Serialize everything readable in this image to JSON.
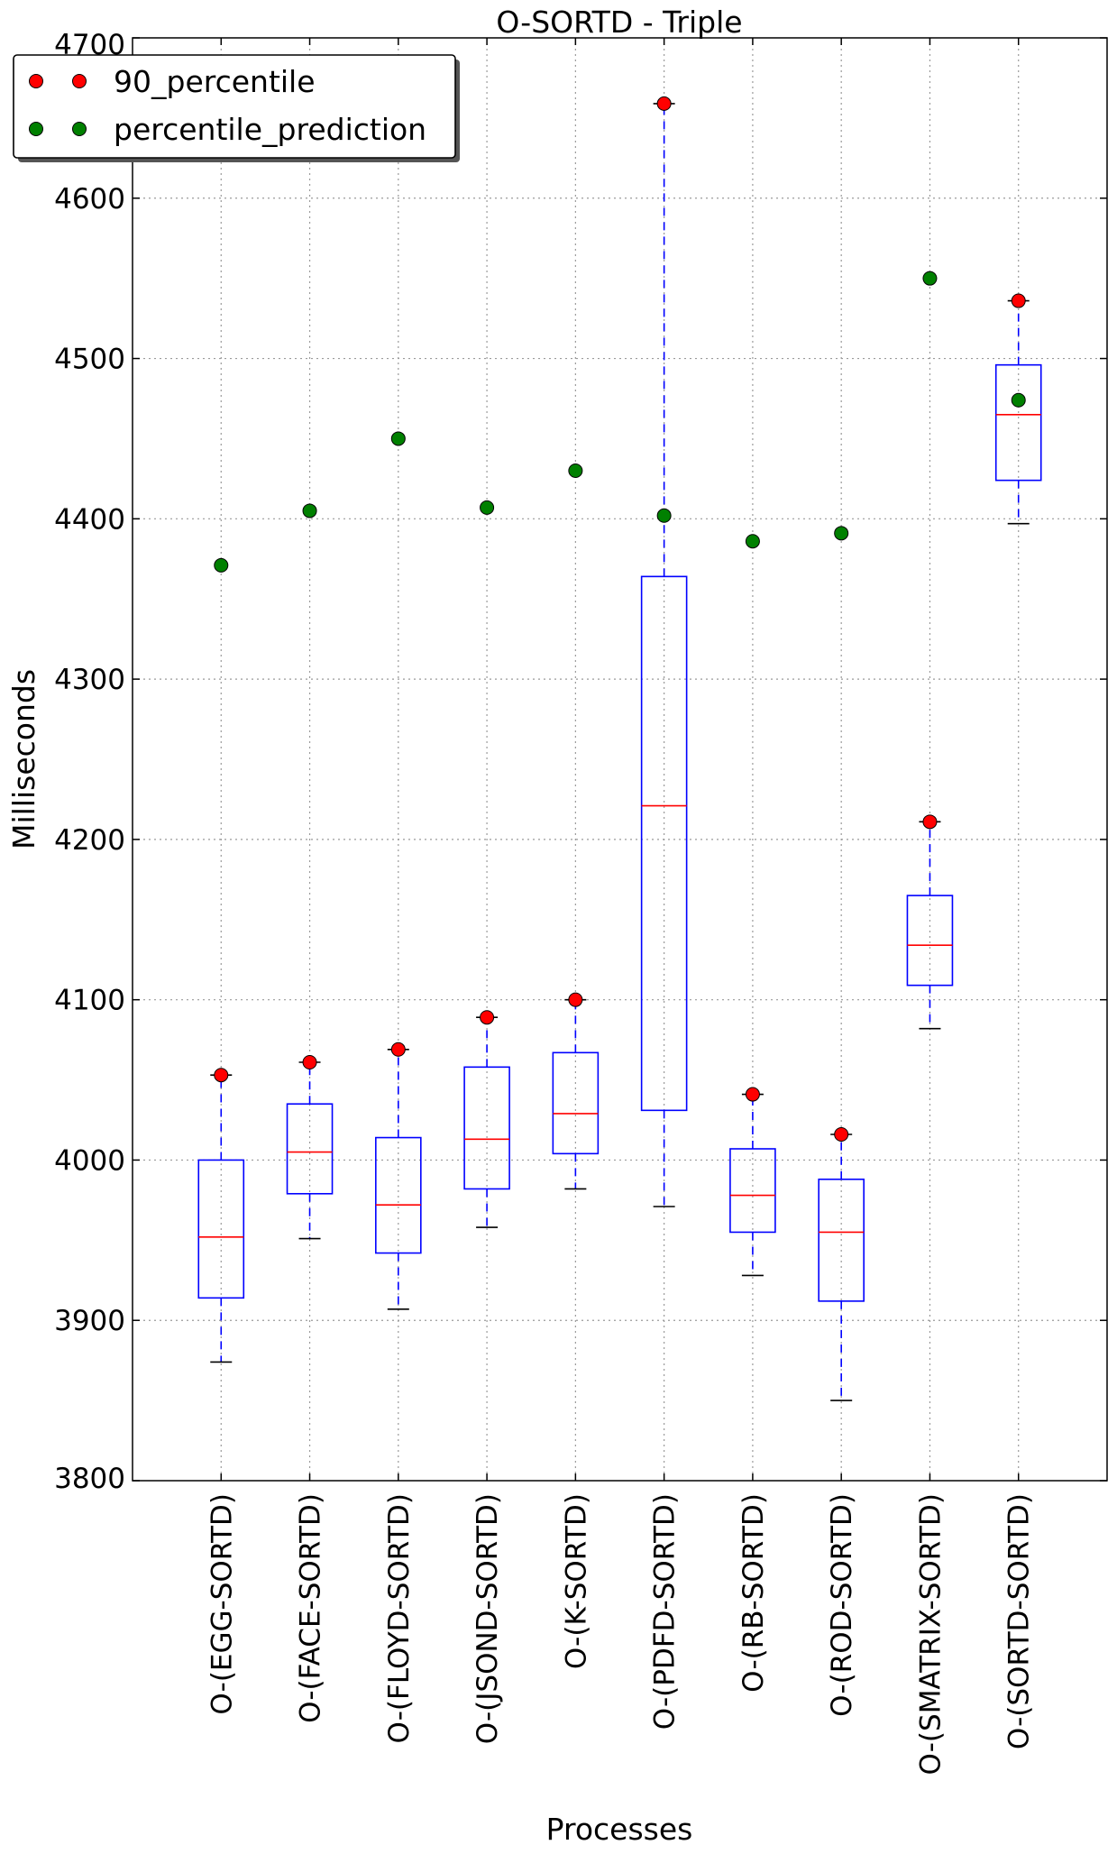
{
  "chart_data": {
    "type": "box",
    "title": "O-SORTD - Triple",
    "xlabel": "Processes",
    "ylabel": "Milliseconds",
    "ylim": [
      3800,
      4700
    ],
    "yticks": [
      3800,
      3900,
      4000,
      4100,
      4200,
      4300,
      4400,
      4500,
      4600,
      4700
    ],
    "grid": true,
    "legend_position": "top-left",
    "categories": [
      "O-(EGG-SORTD)",
      "O-(FACE-SORTD)",
      "O-(FLOYD-SORTD)",
      "O-(JSOND-SORTD)",
      "O-(K-SORTD)",
      "O-(PDFD-SORTD)",
      "O-(RB-SORTD)",
      "O-(ROD-SORTD)",
      "O-(SMATRIX-SORTD)",
      "O-(SORTD-SORTD)"
    ],
    "boxes": [
      {
        "whisker_low": 3874,
        "q1": 3914,
        "median": 3952,
        "q3": 4000,
        "whisker_high": 4053
      },
      {
        "whisker_low": 3951,
        "q1": 3979,
        "median": 4005,
        "q3": 4035,
        "whisker_high": 4061
      },
      {
        "whisker_low": 3907,
        "q1": 3942,
        "median": 3972,
        "q3": 4014,
        "whisker_high": 4069
      },
      {
        "whisker_low": 3958,
        "q1": 3982,
        "median": 4013,
        "q3": 4058,
        "whisker_high": 4089
      },
      {
        "whisker_low": 3982,
        "q1": 4004,
        "median": 4029,
        "q3": 4067,
        "whisker_high": 4100
      },
      {
        "whisker_low": 3971,
        "q1": 4031,
        "median": 4221,
        "q3": 4364,
        "whisker_high": 4659
      },
      {
        "whisker_low": 3928,
        "q1": 3955,
        "median": 3978,
        "q3": 4007,
        "whisker_high": 4041
      },
      {
        "whisker_low": 3850,
        "q1": 3912,
        "median": 3955,
        "q3": 3988,
        "whisker_high": 4016
      },
      {
        "whisker_low": 4082,
        "q1": 4109,
        "median": 4134,
        "q3": 4165,
        "whisker_high": 4211
      },
      {
        "whisker_low": 4397,
        "q1": 4424,
        "median": 4465,
        "q3": 4496,
        "whisker_high": 4536
      }
    ],
    "series": [
      {
        "name": "90_percentile",
        "color": "#ff0000",
        "values": [
          4053,
          4061,
          4069,
          4089,
          4100,
          4659,
          4041,
          4016,
          4211,
          4536
        ]
      },
      {
        "name": "percentile_prediction",
        "color": "#008000",
        "values": [
          4371,
          4405,
          4450,
          4407,
          4430,
          4402,
          4386,
          4391,
          4550,
          4474
        ]
      }
    ],
    "colors": {
      "box": "#0000ff",
      "median": "#ff0000",
      "cap": "#000000"
    }
  }
}
